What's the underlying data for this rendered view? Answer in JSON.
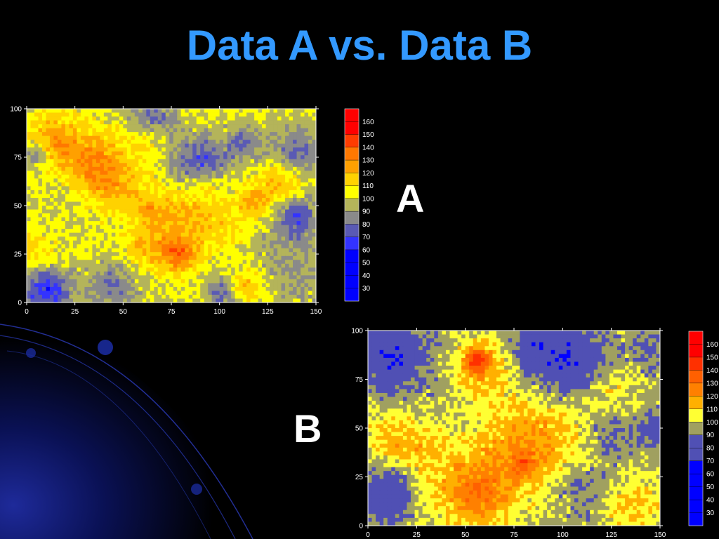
{
  "slide": {
    "title": "Data A vs. Data B"
  },
  "labels": {
    "a": "A",
    "b": "B"
  },
  "chart_data": [
    {
      "type": "heatmap",
      "name": "A",
      "xlim": [
        0,
        150
      ],
      "ylim": [
        0,
        100
      ],
      "xticks": [
        0,
        25,
        50,
        75,
        100,
        125,
        150
      ],
      "yticks": [
        0,
        25,
        50,
        75,
        100
      ],
      "colorbar_levels": [
        30,
        40,
        50,
        60,
        70,
        80,
        90,
        100,
        110,
        120,
        130,
        140,
        150,
        160
      ],
      "colorbar_colors": [
        "#0000ff",
        "#0000ff",
        "#0000ff",
        "#0000ff",
        "#3333ff",
        "#5a5ab4",
        "#8a8a8a",
        "#b4b45a",
        "#ffff00",
        "#ffd200",
        "#ffa000",
        "#ff7800",
        "#ff3c00",
        "#ff0000",
        "#ff0000"
      ],
      "base": 102,
      "blobs": [
        [
          15,
          82,
          10,
          24
        ],
        [
          35,
          70,
          11,
          28
        ],
        [
          45,
          55,
          13,
          18
        ],
        [
          62,
          30,
          9,
          20
        ],
        [
          80,
          25,
          7,
          38
        ],
        [
          80,
          45,
          9,
          16
        ],
        [
          100,
          40,
          12,
          16
        ],
        [
          132,
          62,
          8,
          24
        ],
        [
          113,
          8,
          6,
          22
        ],
        [
          5,
          25,
          7,
          14
        ],
        [
          118,
          52,
          5,
          22
        ],
        [
          62,
          85,
          8,
          14
        ],
        [
          92,
          62,
          6,
          16
        ],
        [
          65,
          48,
          6,
          14
        ],
        [
          65,
          95,
          9,
          -26
        ],
        [
          90,
          72,
          10,
          -32
        ],
        [
          140,
          78,
          10,
          -24
        ],
        [
          112,
          82,
          7,
          -20
        ],
        [
          10,
          6,
          9,
          -38
        ],
        [
          45,
          8,
          10,
          -22
        ],
        [
          102,
          5,
          6,
          -24
        ],
        [
          5,
          76,
          5,
          -24
        ],
        [
          28,
          57,
          13,
          -12
        ],
        [
          88,
          28,
          11,
          -8
        ],
        [
          135,
          30,
          16,
          -12
        ],
        [
          140,
          8,
          9,
          -8
        ],
        [
          140,
          45,
          7,
          -24
        ],
        [
          50,
          40,
          8,
          -10
        ]
      ]
    },
    {
      "type": "heatmap",
      "name": "B",
      "xlim": [
        0,
        150
      ],
      "ylim": [
        0,
        100
      ],
      "xticks": [
        0,
        25,
        50,
        75,
        100,
        125,
        150
      ],
      "yticks": [
        0,
        25,
        50,
        75,
        100
      ],
      "colorbar_levels": [
        30,
        40,
        50,
        60,
        70,
        80,
        90,
        100,
        110,
        120,
        130,
        140,
        150,
        160
      ],
      "colorbar_colors": [
        "#0000ff",
        "#0000ff",
        "#0000ff",
        "#0000ff",
        "#0000ff",
        "#5050b4",
        "#5050b4",
        "#a0a060",
        "#ffff33",
        "#ffb000",
        "#ff8000",
        "#ff6000",
        "#ff3000",
        "#ff0000",
        "#ff0000"
      ],
      "base": 96,
      "blobs": [
        [
          58,
          82,
          10,
          22
        ],
        [
          56,
          85,
          4,
          34
        ],
        [
          85,
          42,
          20,
          24
        ],
        [
          45,
          20,
          16,
          16
        ],
        [
          60,
          15,
          11,
          18
        ],
        [
          12,
          45,
          10,
          18
        ],
        [
          135,
          10,
          12,
          16
        ],
        [
          125,
          70,
          9,
          10
        ],
        [
          80,
          32,
          5,
          16
        ],
        [
          30,
          40,
          8,
          10
        ],
        [
          12,
          87,
          12,
          -24
        ],
        [
          100,
          85,
          14,
          -26
        ],
        [
          10,
          15,
          9,
          -24
        ],
        [
          110,
          20,
          12,
          -12
        ],
        [
          125,
          45,
          8,
          -12
        ],
        [
          145,
          50,
          5,
          -14
        ],
        [
          82,
          95,
          6,
          -12
        ],
        [
          145,
          90,
          6,
          -10
        ]
      ]
    }
  ]
}
